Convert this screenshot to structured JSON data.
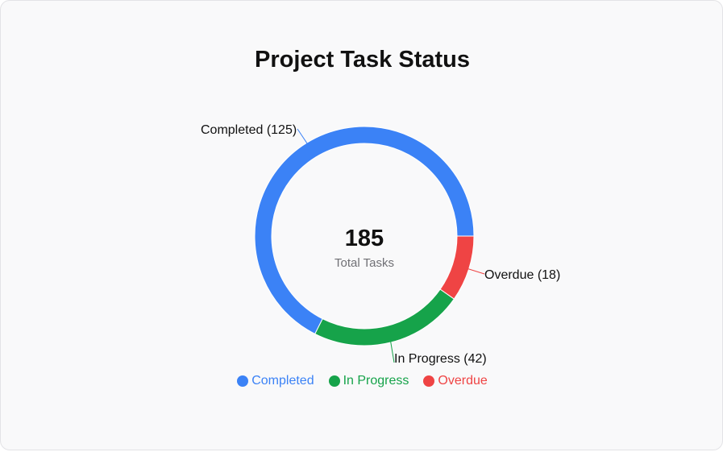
{
  "chart_data": {
    "type": "pie",
    "variant": "donut",
    "title": "Project Task Status",
    "center": {
      "value": "185",
      "label": "Total Tasks"
    },
    "slices": [
      {
        "name": "Completed",
        "value": 125,
        "label": "Completed (125)",
        "color": "#3b82f6"
      },
      {
        "name": "In Progress",
        "value": 42,
        "label": "In Progress (42)",
        "color": "#16a34a"
      },
      {
        "name": "Overdue",
        "value": 18,
        "label": "Overdue (18)",
        "color": "#ef4444"
      }
    ],
    "legend": {
      "placement": "bottom",
      "items": [
        {
          "label": "Completed",
          "color": "#3b82f6"
        },
        {
          "label": "In Progress",
          "color": "#16a34a"
        },
        {
          "label": "Overdue",
          "color": "#ef4444"
        }
      ]
    }
  }
}
